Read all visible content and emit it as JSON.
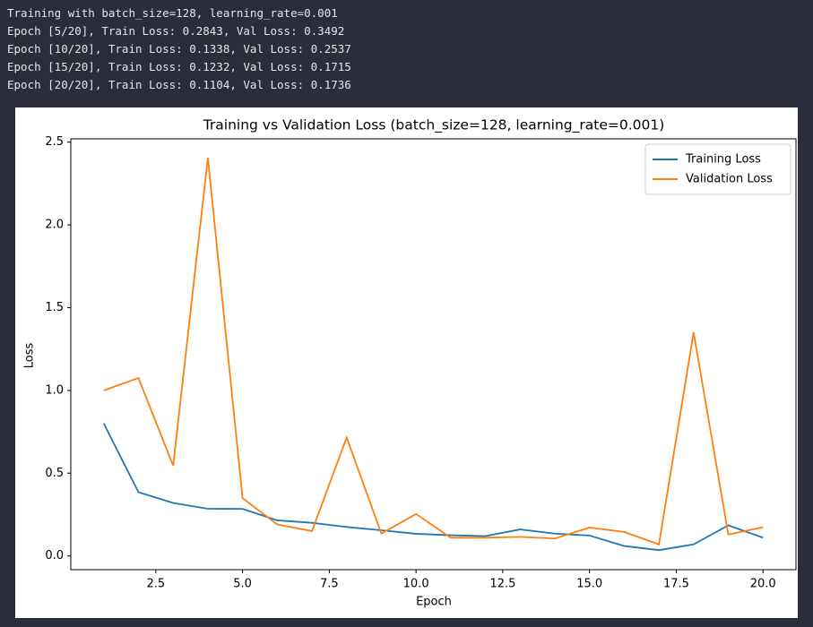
{
  "console": {
    "lines": [
      "Training with batch_size=128, learning_rate=0.001",
      "Epoch [5/20], Train Loss: 0.2843, Val Loss: 0.3492",
      "Epoch [10/20], Train Loss: 0.1338, Val Loss: 0.2537",
      "Epoch [15/20], Train Loss: 0.1232, Val Loss: 0.1715",
      "Epoch [20/20], Train Loss: 0.1104, Val Loss: 0.1736"
    ]
  },
  "chart_data": {
    "type": "line",
    "title": "Training vs Validation Loss (batch_size=128, learning_rate=0.001)",
    "x_label": "Epoch",
    "y_label": "Loss",
    "x": [
      1,
      2,
      3,
      4,
      5,
      6,
      7,
      8,
      9,
      10,
      11,
      12,
      13,
      14,
      15,
      16,
      17,
      18,
      19,
      20
    ],
    "series": [
      {
        "name": "Training Loss",
        "color": "#1f77b4",
        "values": [
          0.8,
          0.385,
          0.32,
          0.285,
          0.2843,
          0.215,
          0.2,
          0.175,
          0.155,
          0.1338,
          0.125,
          0.12,
          0.16,
          0.135,
          0.1232,
          0.06,
          0.035,
          0.07,
          0.185,
          0.1104
        ]
      },
      {
        "name": "Validation Loss",
        "color": "#ff7f0e",
        "values": [
          1.0,
          1.075,
          0.545,
          2.405,
          0.3492,
          0.19,
          0.15,
          0.715,
          0.135,
          0.2537,
          0.11,
          0.11,
          0.115,
          0.105,
          0.1715,
          0.145,
          0.07,
          1.35,
          0.13,
          0.1736
        ]
      }
    ],
    "xlim": [
      0.05,
      20.95
    ],
    "xticks": [
      2.5,
      {
        "value": 5,
        "label": "5.0"
      },
      7.5,
      {
        "value": 10,
        "label": "10.0"
      },
      12.5,
      {
        "value": 15,
        "label": "15.0"
      },
      17.5,
      {
        "value": 20,
        "label": "20.0"
      }
    ],
    "ylim": [
      -0.083,
      2.52
    ],
    "yticks": [
      {
        "value": 0,
        "label": "0.0"
      },
      0.5,
      {
        "value": 1,
        "label": "1.0"
      },
      1.5,
      {
        "value": 2,
        "label": "2.0"
      },
      2.5
    ],
    "legend": "upper right",
    "grid": false
  }
}
